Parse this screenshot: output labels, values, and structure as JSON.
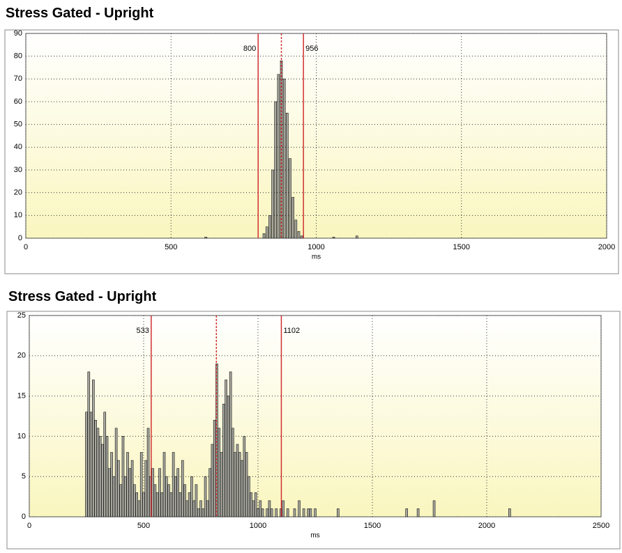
{
  "chart_data": [
    {
      "type": "bar",
      "title": "Stress Gated  - Upright",
      "x_label": "ms",
      "color": "#a8a8a0",
      "xlim": [
        0,
        2000
      ],
      "xticks": [
        0,
        500,
        1000,
        1500,
        2000
      ],
      "ylim": [
        0,
        90
      ],
      "yticks": [
        0,
        10,
        20,
        30,
        40,
        50,
        60,
        70,
        80,
        90
      ],
      "grid": true,
      "markers": [
        800,
        956
      ],
      "marker_color": "#d03030",
      "dashed_line": 880,
      "x": [
        620,
        820,
        830,
        840,
        850,
        860,
        870,
        880,
        890,
        900,
        910,
        920,
        930,
        940,
        950,
        1060,
        1140
      ],
      "values": [
        0.5,
        2,
        5,
        10,
        30,
        60,
        72,
        78,
        70,
        55,
        35,
        18,
        8,
        3,
        1,
        0.5,
        1
      ]
    },
    {
      "type": "bar",
      "title": "Stress Gated  - Upright",
      "x_label": "ms",
      "color": "#a8a8a0",
      "xlim": [
        0,
        2500
      ],
      "xticks": [
        0,
        500,
        1000,
        1500,
        2000,
        2500
      ],
      "ylim": [
        0,
        25
      ],
      "yticks": [
        0,
        5,
        10,
        15,
        20,
        25
      ],
      "grid": true,
      "markers": [
        533,
        1102
      ],
      "marker_color": "#d03030",
      "dashed_line": 818,
      "x": [
        250,
        260,
        270,
        280,
        290,
        300,
        310,
        320,
        330,
        340,
        350,
        360,
        370,
        380,
        390,
        400,
        410,
        420,
        430,
        440,
        450,
        460,
        470,
        480,
        490,
        500,
        510,
        520,
        530,
        540,
        550,
        560,
        570,
        580,
        590,
        600,
        610,
        620,
        630,
        640,
        650,
        660,
        670,
        680,
        690,
        700,
        710,
        720,
        730,
        740,
        750,
        760,
        770,
        780,
        790,
        800,
        810,
        820,
        830,
        840,
        850,
        860,
        870,
        880,
        890,
        900,
        910,
        920,
        930,
        940,
        950,
        960,
        970,
        980,
        990,
        1000,
        1010,
        1020,
        1040,
        1050,
        1060,
        1080,
        1100,
        1110,
        1130,
        1160,
        1180,
        1200,
        1220,
        1230,
        1250,
        1350,
        1650,
        1700,
        1770,
        2100
      ],
      "values": [
        13,
        18,
        13,
        17,
        12,
        11,
        10,
        9,
        13,
        10,
        6,
        8,
        5,
        11,
        7,
        4,
        10,
        5,
        8,
        6,
        7,
        4,
        3,
        2,
        8,
        3,
        7,
        11,
        5,
        6,
        4,
        3,
        6,
        3,
        8,
        5,
        4,
        3,
        8,
        5,
        6,
        3,
        7,
        4,
        2,
        3,
        5,
        2,
        4,
        1,
        2,
        1,
        5,
        2,
        6,
        9,
        12,
        19,
        11,
        8,
        14,
        17,
        15,
        18,
        11,
        8,
        9,
        8,
        7,
        10,
        8,
        5,
        3,
        2,
        3,
        1,
        2,
        1,
        1,
        2,
        1,
        1,
        1,
        2,
        1,
        1,
        2,
        1,
        1,
        1,
        1,
        1,
        1,
        1,
        2,
        1
      ]
    }
  ]
}
